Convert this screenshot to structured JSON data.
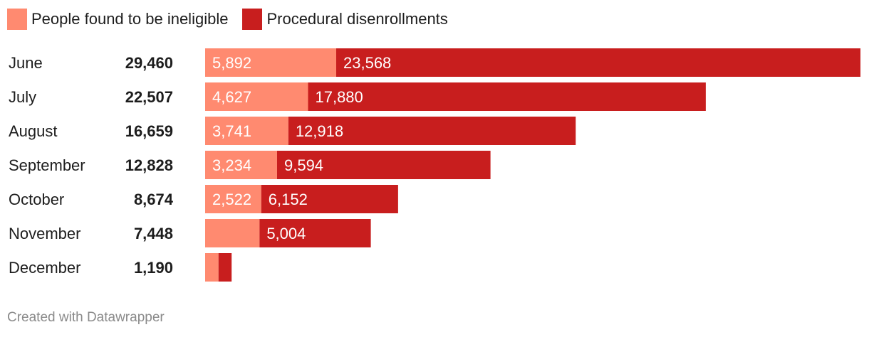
{
  "chart_data": {
    "type": "bar",
    "orientation": "horizontal",
    "stacked": true,
    "categories": [
      "June",
      "July",
      "August",
      "September",
      "October",
      "November",
      "December"
    ],
    "totals": [
      "29,460",
      "22,507",
      "16,659",
      "12,828",
      "8,674",
      "7,448",
      "1,190"
    ],
    "series": [
      {
        "name": "People found to be ineligible",
        "color": "#ff8a70",
        "values": [
          5892,
          4627,
          3741,
          3234,
          2522,
          2444,
          600
        ],
        "labels": [
          "5,892",
          "4,627",
          "3,741",
          "3,234",
          "2,522",
          "",
          ""
        ]
      },
      {
        "name": "Procedural disenrollments",
        "color": "#c81e1e",
        "values": [
          23568,
          17880,
          12918,
          9594,
          6152,
          5004,
          590
        ],
        "labels": [
          "23,568",
          "17,880",
          "12,918",
          "9,594",
          "6,152",
          "5,004",
          ""
        ]
      }
    ],
    "xlim": [
      0,
      29460
    ],
    "grid": false,
    "legend": "top-left"
  },
  "footer": {
    "credit": "Created with Datawrapper"
  }
}
